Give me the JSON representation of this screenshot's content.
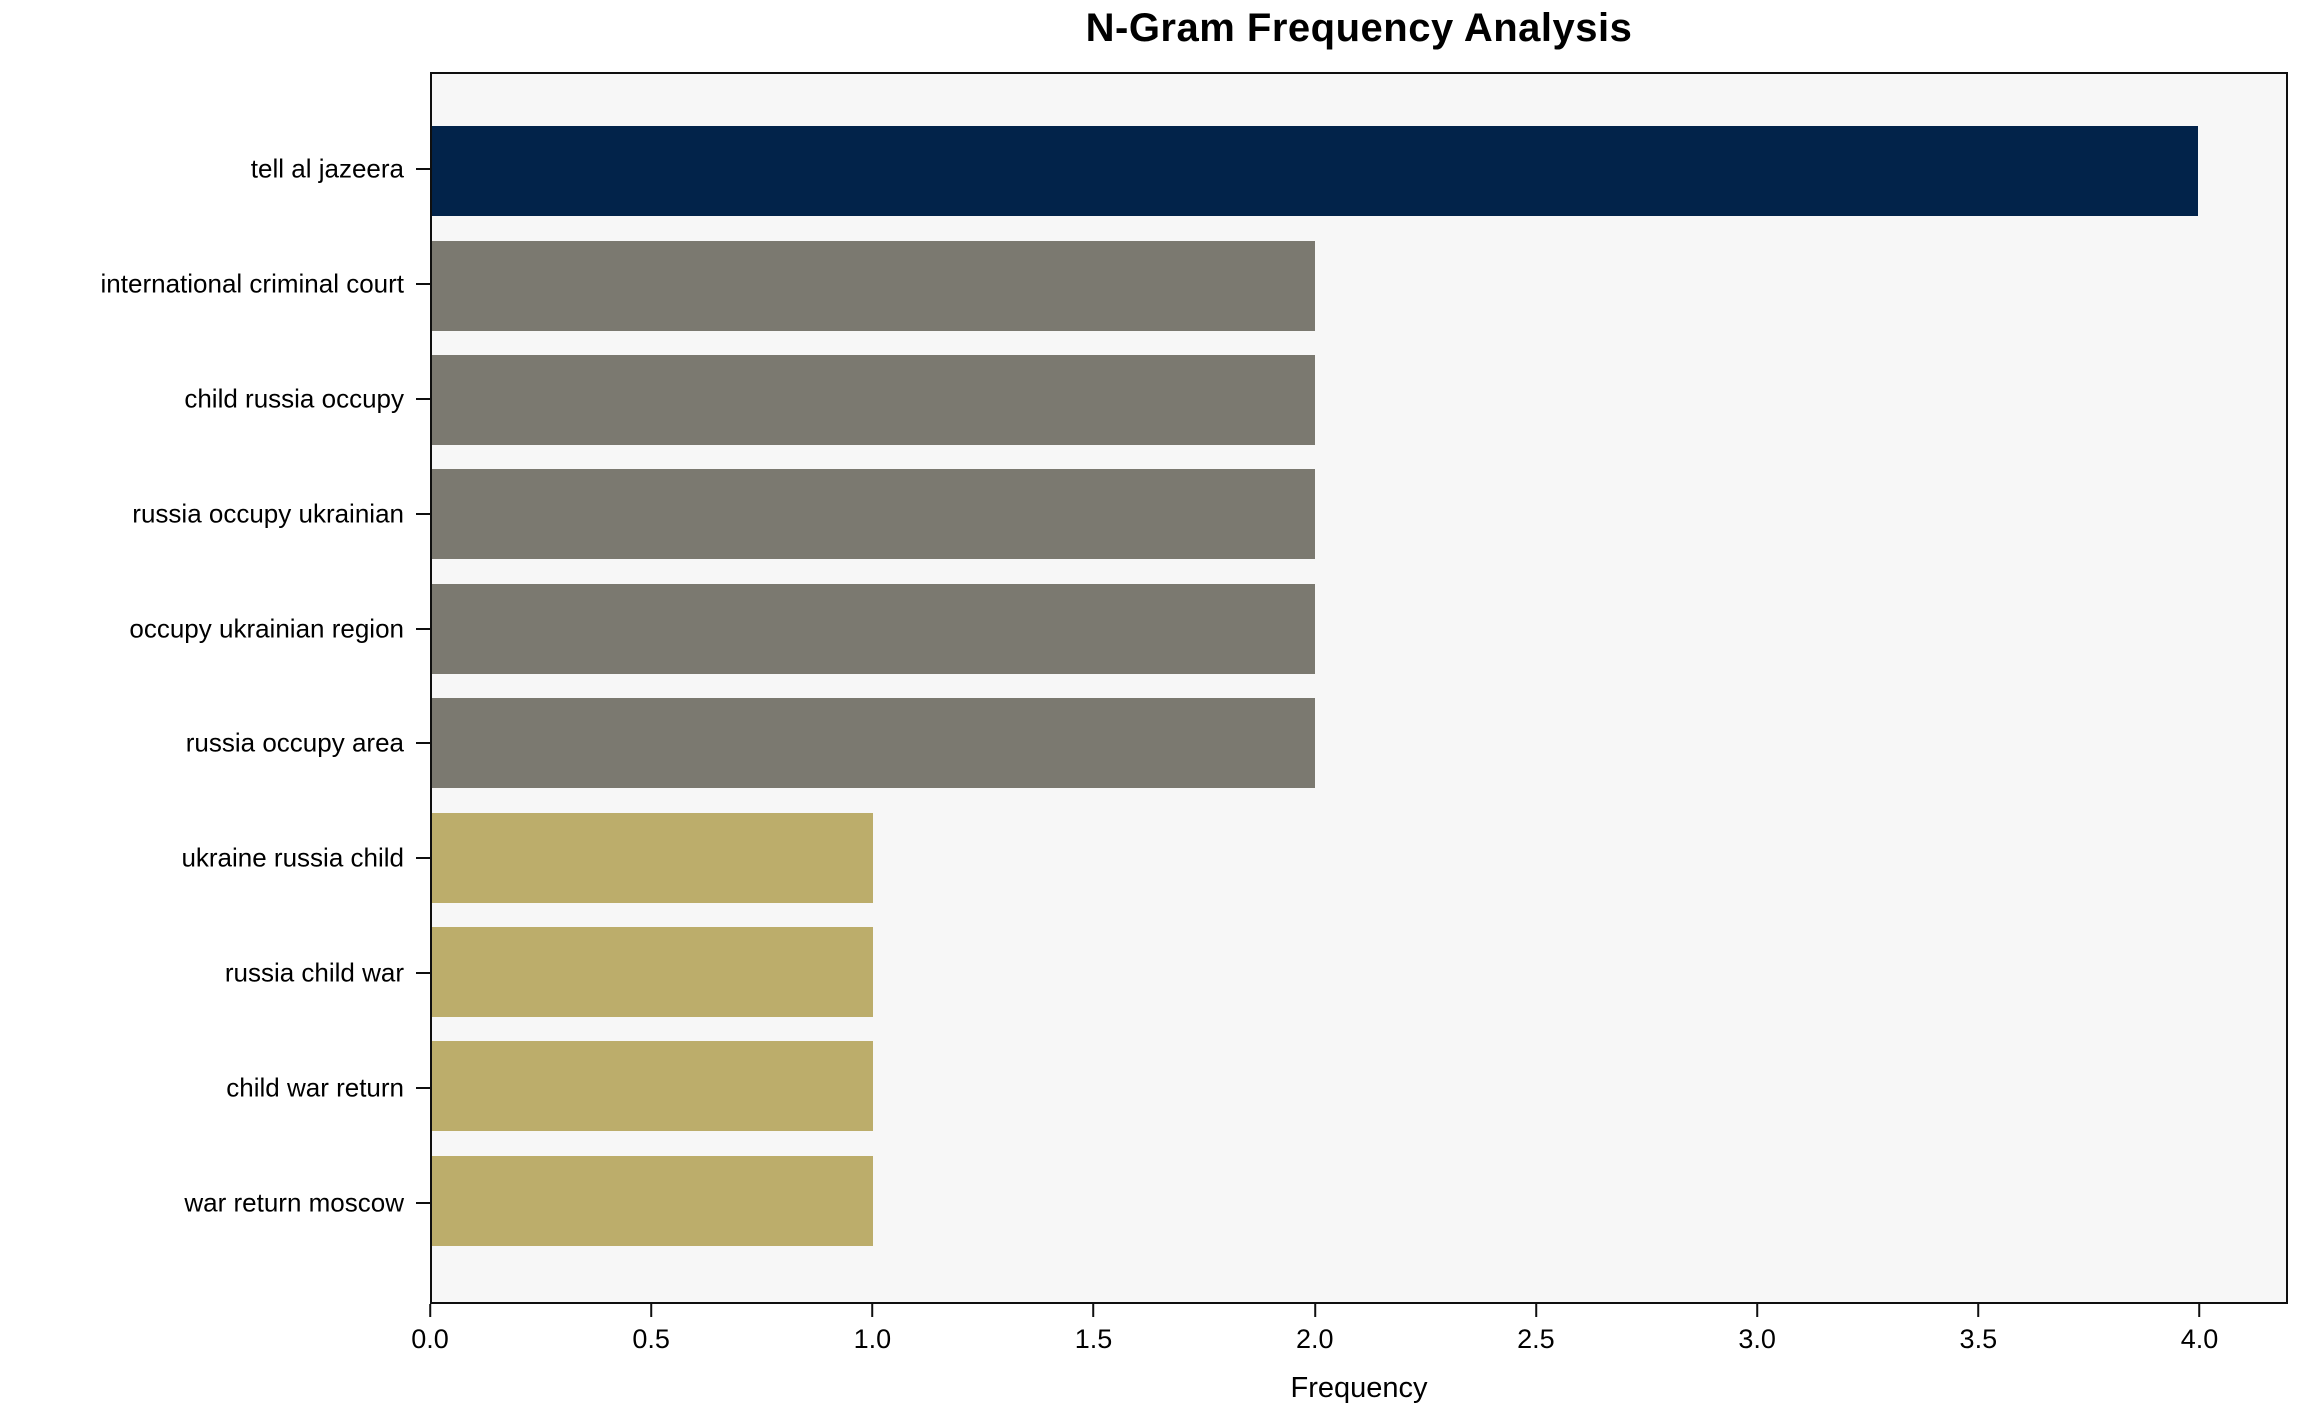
{
  "title": "N-Gram Frequency Analysis",
  "chart_data": {
    "type": "bar",
    "orientation": "horizontal",
    "title": "N-Gram Frequency Analysis",
    "xlabel": "Frequency",
    "ylabel": "",
    "categories": [
      "tell al jazeera",
      "international criminal court",
      "child russia occupy",
      "russia occupy ukrainian",
      "occupy ukrainian region",
      "russia occupy area",
      "ukraine russia child",
      "russia child war",
      "child war return",
      "war return moscow"
    ],
    "values": [
      4,
      2,
      2,
      2,
      2,
      2,
      1,
      1,
      1,
      1
    ],
    "bar_colors": [
      "#02234A",
      "#7B7970",
      "#7B7970",
      "#7B7970",
      "#7B7970",
      "#7B7970",
      "#BCAD6B",
      "#BCAD6B",
      "#BCAD6B",
      "#BCAD6B"
    ],
    "xlim": [
      0,
      4.2
    ],
    "xticks": [
      0,
      0.5,
      1,
      1.5,
      2,
      2.5,
      3,
      3.5,
      4
    ],
    "xtick_labels": [
      "0.0",
      "0.5",
      "1.0",
      "1.5",
      "2.0",
      "2.5",
      "3.0",
      "3.5",
      "4.0"
    ],
    "grid": false,
    "legend": false,
    "plot_background": "#F7F7F7",
    "colors": {
      "highlight": "#02234A",
      "neutral": "#7B7970",
      "tertiary": "#BCAD6B",
      "axis": "#0F0F0F"
    }
  }
}
